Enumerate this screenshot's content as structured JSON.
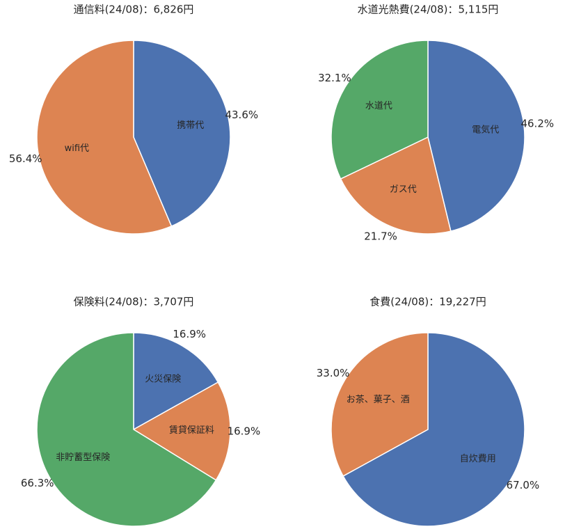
{
  "chart_data": [
    {
      "type": "pie",
      "title": "通信料(24/08)：6,826円",
      "categories": [
        "携帯代",
        "wifi代"
      ],
      "values": [
        43.6,
        56.4
      ],
      "percent_labels": [
        "43.6%",
        "56.4%"
      ],
      "colors": [
        "#4c72b0",
        "#dd8452"
      ]
    },
    {
      "type": "pie",
      "title": "水道光熱費(24/08)：5,115円",
      "categories": [
        "電気代",
        "ガス代",
        "水道代"
      ],
      "values": [
        46.2,
        21.7,
        32.1
      ],
      "percent_labels": [
        "46.2%",
        "21.7%",
        "32.1%"
      ],
      "colors": [
        "#4c72b0",
        "#dd8452",
        "#55a868"
      ]
    },
    {
      "type": "pie",
      "title": "保険料(24/08)：3,707円",
      "categories": [
        "火災保険",
        "賃貸保証料",
        "非貯蓄型保険"
      ],
      "values": [
        16.9,
        16.9,
        66.3
      ],
      "percent_labels": [
        "16.9%",
        "16.9%",
        "66.3%"
      ],
      "colors": [
        "#4c72b0",
        "#dd8452",
        "#55a868"
      ]
    },
    {
      "type": "pie",
      "title": "食費(24/08)：19,227円",
      "categories": [
        "自炊費用",
        "お茶、菓子、酒"
      ],
      "values": [
        67.0,
        33.0
      ],
      "percent_labels": [
        "67.0%",
        "33.0%"
      ],
      "colors": [
        "#4c72b0",
        "#dd8452"
      ]
    }
  ]
}
